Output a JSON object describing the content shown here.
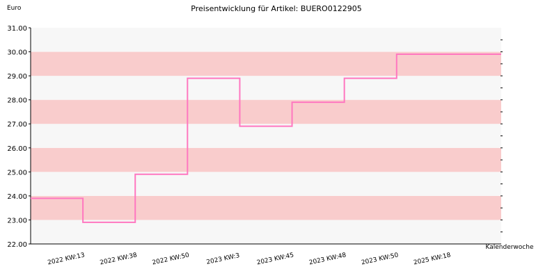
{
  "chart_data": {
    "type": "line",
    "step": true,
    "title": "Preisentwicklung für Artikel: BUERO0122905",
    "ylabel": "Euro",
    "xlabel": "Kalenderwoche",
    "ylim": [
      22.0,
      31.0
    ],
    "yticks": [
      "22.00",
      "23.00",
      "24.00",
      "25.00",
      "26.00",
      "27.00",
      "28.00",
      "29.00",
      "30.00",
      "31.00"
    ],
    "categories": [
      "2022 KW:13",
      "2022 KW:38",
      "2022 KW:50",
      "2023 KW:3",
      "2023 KW:45",
      "2023 KW:48",
      "2023 KW:50",
      "2025 KW:18"
    ],
    "values": [
      23.9,
      22.9,
      24.9,
      28.9,
      26.9,
      27.9,
      28.9,
      29.9
    ],
    "grid": true,
    "colors": {
      "line": "#ff77c0",
      "band_dark": "#f9cccc",
      "band_light": "#f7f7f7"
    }
  }
}
